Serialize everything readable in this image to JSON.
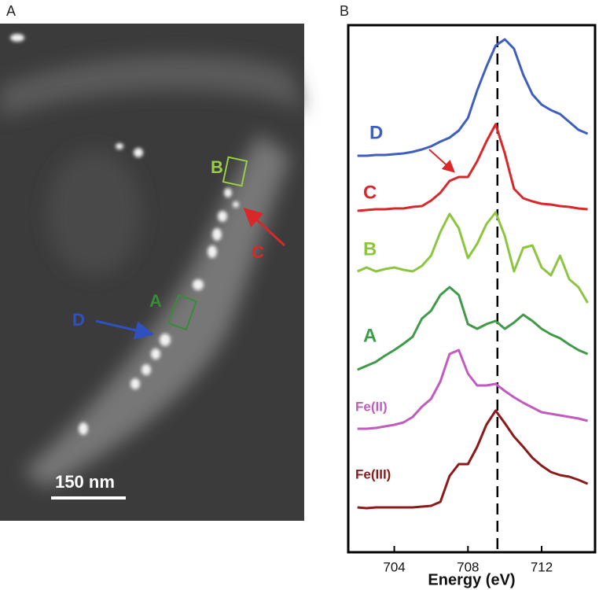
{
  "panel_labels": [
    "A",
    "B"
  ],
  "image": {
    "markers": [
      "B",
      "A",
      "C",
      "D"
    ],
    "scale_bar": "150 nm"
  },
  "chart_data": {
    "type": "line",
    "xlabel": "Energy (eV)",
    "x": [
      702,
      702.5,
      703,
      703.5,
      704,
      704.5,
      705,
      705.5,
      706,
      706.5,
      707,
      707.5,
      708,
      708.5,
      709,
      709.5,
      710,
      710.5,
      711,
      711.5,
      712,
      712.5,
      713,
      713.5,
      714,
      714.5
    ],
    "xlim": [
      701.5,
      714.9
    ],
    "xticks": [
      704,
      708,
      712
    ],
    "ylim": [
      0,
      670
    ],
    "vline": 709.6,
    "series": [
      {
        "name": "D",
        "color": "#3f5fbf",
        "values": [
          504,
          504,
          505,
          505,
          506,
          507,
          509,
          512,
          516,
          522,
          527,
          536,
          552,
          587,
          617,
          644,
          652,
          640,
          607,
          582,
          569,
          562,
          557,
          547,
          537,
          532
        ]
      },
      {
        "name": "C",
        "color": "#d8282a",
        "values": [
          434,
          435,
          436,
          436,
          437,
          437,
          439,
          440,
          447,
          457,
          472,
          477,
          477,
          497,
          522,
          544,
          507,
          462,
          450,
          446,
          443,
          442,
          440,
          439,
          437,
          436
        ]
      },
      {
        "name": "B",
        "color": "#8cc63f",
        "values": [
          357,
          362,
          357,
          360,
          362,
          359,
          357,
          364,
          377,
          407,
          430,
          412,
          374,
          392,
          417,
          432,
          402,
          357,
          387,
          390,
          362,
          352,
          377,
          347,
          337,
          317
        ]
      },
      {
        "name": "A",
        "color": "#3f9a4a",
        "values": [
          232,
          237,
          242,
          250,
          257,
          265,
          274,
          297,
          307,
          327,
          337,
          327,
          290,
          284,
          290,
          294,
          284,
          292,
          302,
          294,
          284,
          277,
          272,
          264,
          257,
          252
        ]
      },
      {
        "name": "Fe(II)",
        "color": "#c15bbf",
        "values": [
          157,
          157,
          158,
          160,
          162,
          165,
          172,
          185,
          195,
          217,
          252,
          257,
          227,
          212,
          212,
          214,
          205,
          197,
          190,
          184,
          178,
          176,
          174,
          172,
          170,
          167
        ]
      },
      {
        "name": "Fe(III)",
        "color": "#8b1a1a",
        "values": [
          57,
          56,
          57,
          57,
          57,
          57,
          57,
          58,
          59,
          64,
          97,
          112,
          112,
          134,
          162,
          180,
          164,
          147,
          134,
          120,
          110,
          102,
          98,
          96,
          92,
          87
        ]
      }
    ]
  }
}
